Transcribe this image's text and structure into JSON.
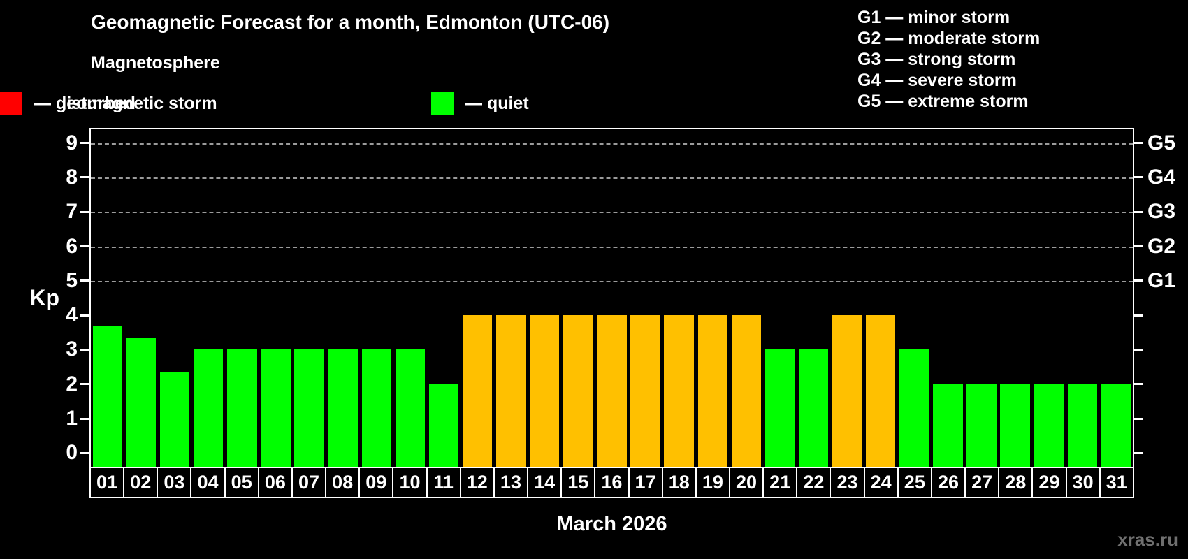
{
  "header": {
    "title": "Geomagnetic Forecast for a month, Edmonton (UTC-06)",
    "subtitle": "Magnetosphere",
    "legend": [
      {
        "name": "quiet",
        "label": "— quiet",
        "color": "#00ff00"
      },
      {
        "name": "disturbed",
        "label": "— disturbed",
        "color": "#ffc000"
      },
      {
        "name": "storm",
        "label": "— geomagnetic storm",
        "color": "#ff0000"
      }
    ],
    "storm_scale": [
      "G1 — minor storm",
      "G2 — moderate storm",
      "G3 — strong storm",
      "G4 — severe storm",
      "G5 — extreme storm"
    ]
  },
  "chart_data": {
    "type": "bar",
    "title": "Geomagnetic Forecast for a month, Edmonton (UTC-06)",
    "xlabel": "March 2026",
    "ylabel": "Kp",
    "ylim": [
      -0.4,
      9.4
    ],
    "grid": "dashed horizontal lines at Kp 5-9 only",
    "y_ticks": [
      0,
      1,
      2,
      3,
      4,
      5,
      6,
      7,
      8,
      9
    ],
    "gridline_levels": [
      5,
      6,
      7,
      8,
      9
    ],
    "right_axis": [
      {
        "label": "G1",
        "value": 5
      },
      {
        "label": "G2",
        "value": 6
      },
      {
        "label": "G3",
        "value": 7
      },
      {
        "label": "G4",
        "value": 8
      },
      {
        "label": "G5",
        "value": 9
      }
    ],
    "categories": [
      "01",
      "02",
      "03",
      "04",
      "05",
      "06",
      "07",
      "08",
      "09",
      "10",
      "11",
      "12",
      "13",
      "14",
      "15",
      "16",
      "17",
      "18",
      "19",
      "20",
      "21",
      "22",
      "23",
      "24",
      "25",
      "26",
      "27",
      "28",
      "29",
      "30",
      "31"
    ],
    "values": [
      3.67,
      3.33,
      2.33,
      3,
      3,
      3,
      3,
      3,
      3,
      3,
      2,
      4,
      4,
      4,
      4,
      4,
      4,
      4,
      4,
      4,
      3,
      3,
      4,
      4,
      3,
      2,
      2,
      2,
      2,
      2,
      2
    ],
    "statuses": [
      "quiet",
      "quiet",
      "quiet",
      "quiet",
      "quiet",
      "quiet",
      "quiet",
      "quiet",
      "quiet",
      "quiet",
      "quiet",
      "disturbed",
      "disturbed",
      "disturbed",
      "disturbed",
      "disturbed",
      "disturbed",
      "disturbed",
      "disturbed",
      "disturbed",
      "quiet",
      "quiet",
      "disturbed",
      "disturbed",
      "quiet",
      "quiet",
      "quiet",
      "quiet",
      "quiet",
      "quiet",
      "quiet"
    ],
    "status_colors": {
      "quiet": "#00ff00",
      "disturbed": "#ffc000",
      "storm": "#ff0000"
    },
    "legend_position": "top-left"
  },
  "footer": {
    "xaxis_title": "March 2026",
    "watermark": "xras.ru"
  }
}
